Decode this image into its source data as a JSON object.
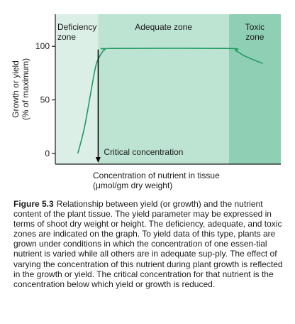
{
  "chart_data": {
    "type": "line",
    "title": "",
    "xlabel": "Concentration of nutrient in tissue",
    "xlabel_units": "(μmol/gm dry weight)",
    "ylabel": "Growth or yield",
    "ylabel_units": "(% of maximum)",
    "ylim": [
      -10,
      130
    ],
    "xlim": [
      0,
      100
    ],
    "yticks": [
      0,
      50,
      100
    ],
    "ytick_labels": [
      "0",
      "50",
      "100"
    ],
    "grid": false,
    "legend": "none",
    "zones": [
      {
        "name": "Deficiency zone",
        "label_lines": [
          "Deficiency",
          "zone"
        ],
        "x_start": 0,
        "x_end": 19,
        "color": "#dcefe6"
      },
      {
        "name": "Adequate zone",
        "label_lines": [
          "Adequate zone"
        ],
        "x_start": 19,
        "x_end": 77,
        "color": "#bde3d3"
      },
      {
        "name": "Toxic zone",
        "label_lines": [
          "Toxic",
          "zone"
        ],
        "x_start": 77,
        "x_end": 100,
        "color": "#8fd0b4"
      }
    ],
    "series": [
      {
        "color": "#1f9a62",
        "points": [
          {
            "x": 10,
            "y": 0
          },
          {
            "x": 13,
            "y": 25
          },
          {
            "x": 16,
            "y": 60
          },
          {
            "x": 18,
            "y": 82
          },
          {
            "x": 20,
            "y": 92
          },
          {
            "x": 22,
            "y": 97
          },
          {
            "x": 25,
            "y": 98
          },
          {
            "x": 76,
            "y": 98
          },
          {
            "x": 80,
            "y": 96
          },
          {
            "x": 84,
            "y": 91
          },
          {
            "x": 92,
            "y": 84
          }
        ]
      }
    ],
    "annotations": [
      {
        "text": "Critical concentration",
        "x": 19
      }
    ],
    "colors": {
      "curve": "#1f9a62",
      "axis": "#1b1b1b"
    }
  },
  "caption": {
    "label": "Figure 5.3",
    "text": "Relationship between yield (or growth) and the nutrient content of the plant tissue. The yield parameter may be expressed in terms of shoot dry weight or height. The deficiency, adequate, and toxic zones are indicated on the graph. To yield data of this type, plants are grown under conditions in which the concentration of one essen-tial nutrient is varied while all others are in adequate sup-ply. The effect of varying the concentration of this nutrient during plant growth is reflected in the growth or yield. The critical concentration for that nutrient is the concentration below which yield or growth is reduced."
  }
}
